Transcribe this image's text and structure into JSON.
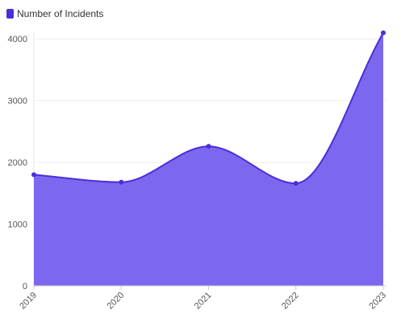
{
  "chart_data": {
    "type": "area",
    "categories": [
      "2019",
      "2020",
      "2021",
      "2022",
      "2023"
    ],
    "series": [
      {
        "name": "Number of Incidents",
        "values": [
          1800,
          1680,
          2260,
          1660,
          4100
        ]
      }
    ],
    "yticks": [
      "0",
      "1000",
      "2000",
      "3000",
      "4000"
    ],
    "ylim": [
      0,
      4500
    ],
    "grid": true,
    "legend_position": "top-left",
    "colors": {
      "line": "#4a2fd9",
      "fill": "#7b68ee",
      "point": "#4a2fd9",
      "grid": "#eeeeee",
      "axis_text": "#555555"
    }
  }
}
